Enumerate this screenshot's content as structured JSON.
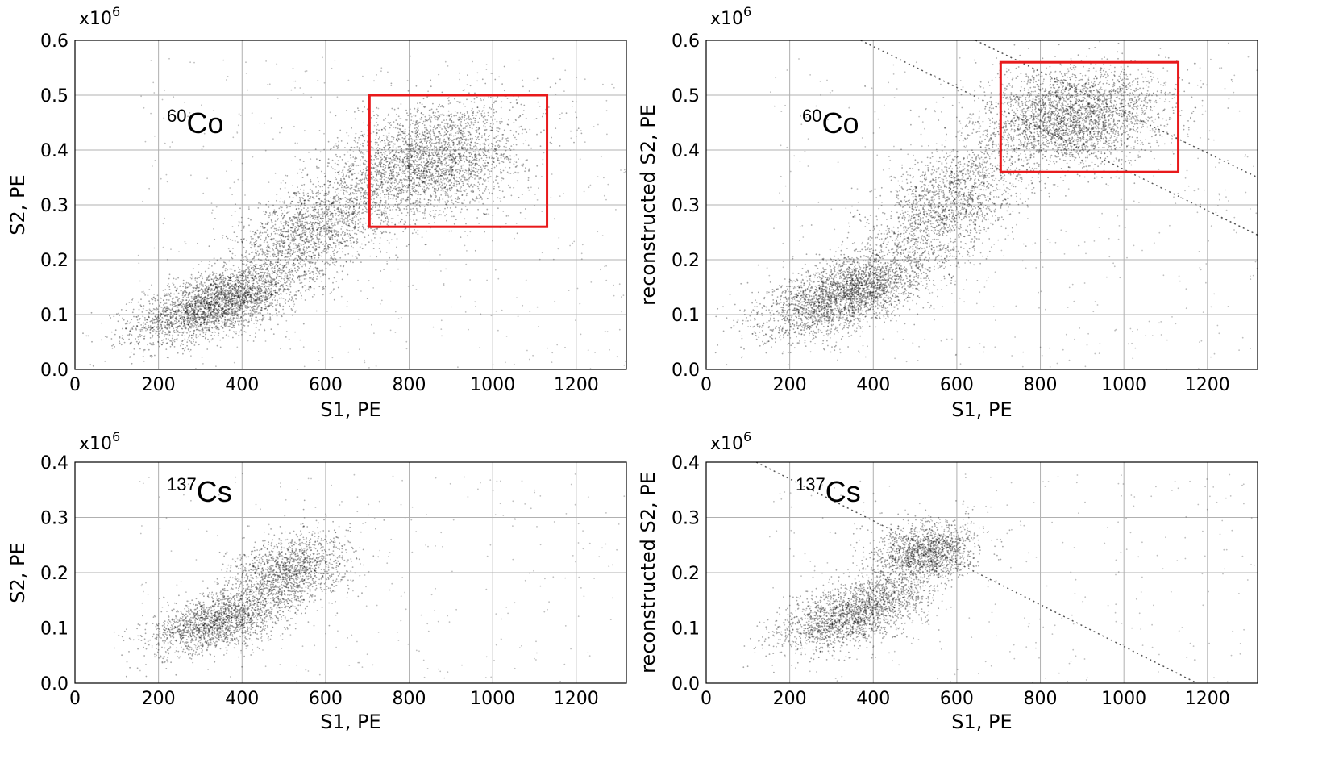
{
  "chart_data": [
    {
      "id": "co60_raw",
      "type": "scatter",
      "isotope_mass": "60",
      "isotope_symbol": "Co",
      "scale_base": "x10",
      "scale_exp": "6",
      "xlabel": "S1, PE",
      "ylabel": "S2, PE",
      "xlim": [
        0,
        1320
      ],
      "ylim": [
        0,
        0.6
      ],
      "xticks": [
        0,
        200,
        400,
        600,
        800,
        1000,
        1200
      ],
      "yticks": [
        "0.0",
        "0.1",
        "0.2",
        "0.3",
        "0.4",
        "0.5",
        "0.6"
      ],
      "grid": true,
      "selection_box": {
        "x": [
          705,
          1130
        ],
        "y": [
          0.26,
          0.5
        ],
        "color": "#e8191b"
      },
      "diagonal_lines": [],
      "clusters": [
        {
          "cx": 340,
          "cy": 0.12,
          "sx": 100,
          "sy": 0.035,
          "rho": 0.6,
          "n": 3000
        },
        {
          "cx": 560,
          "cy": 0.25,
          "sx": 90,
          "sy": 0.05,
          "rho": 0.5,
          "n": 1800
        },
        {
          "cx": 850,
          "cy": 0.38,
          "sx": 110,
          "sy": 0.055,
          "rho": 0.3,
          "n": 3000
        }
      ],
      "background_points": 500
    },
    {
      "id": "co60_reconstructed",
      "type": "scatter",
      "isotope_mass": "60",
      "isotope_symbol": "Co",
      "scale_base": "x10",
      "scale_exp": "6",
      "xlabel": "S1, PE",
      "ylabel": "reconstructed S2, PE",
      "xlim": [
        0,
        1320
      ],
      "ylim": [
        0,
        0.6
      ],
      "xticks": [
        0,
        200,
        400,
        600,
        800,
        1000,
        1200
      ],
      "yticks": [
        "0.0",
        "0.1",
        "0.2",
        "0.3",
        "0.4",
        "0.5",
        "0.6"
      ],
      "grid": true,
      "selection_box": {
        "x": [
          705,
          1130
        ],
        "y": [
          0.36,
          0.56
        ],
        "color": "#e8191b"
      },
      "diagonal_lines": [
        {
          "x1": 370,
          "y1": 0.6,
          "x2": 1320,
          "y2": 0.245
        },
        {
          "x1": 645,
          "y1": 0.6,
          "x2": 1320,
          "y2": 0.35
        }
      ],
      "clusters": [
        {
          "cx": 340,
          "cy": 0.14,
          "sx": 100,
          "sy": 0.04,
          "rho": 0.6,
          "n": 3000
        },
        {
          "cx": 580,
          "cy": 0.3,
          "sx": 90,
          "sy": 0.06,
          "rho": 0.5,
          "n": 1800
        },
        {
          "cx": 880,
          "cy": 0.46,
          "sx": 110,
          "sy": 0.045,
          "rho": 0.2,
          "n": 3000
        }
      ],
      "background_points": 500
    },
    {
      "id": "cs137_raw",
      "type": "scatter",
      "isotope_mass": "137",
      "isotope_symbol": "Cs",
      "scale_base": "x10",
      "scale_exp": "6",
      "xlabel": "S1, PE",
      "ylabel": "S2, PE",
      "xlim": [
        0,
        1320
      ],
      "ylim": [
        0,
        0.4
      ],
      "xticks": [
        0,
        200,
        400,
        600,
        800,
        1000,
        1200
      ],
      "yticks": [
        "0.0",
        "0.1",
        "0.2",
        "0.3",
        "0.4"
      ],
      "grid": true,
      "selection_box": null,
      "diagonal_lines": [],
      "clusters": [
        {
          "cx": 340,
          "cy": 0.11,
          "sx": 80,
          "sy": 0.03,
          "rho": 0.5,
          "n": 1800
        },
        {
          "cx": 510,
          "cy": 0.2,
          "sx": 70,
          "sy": 0.035,
          "rho": 0.3,
          "n": 1500
        }
      ],
      "background_points": 300
    },
    {
      "id": "cs137_reconstructed",
      "type": "scatter",
      "isotope_mass": "137",
      "isotope_symbol": "Cs",
      "scale_base": "x10",
      "scale_exp": "6",
      "xlabel": "S1, PE",
      "ylabel": "reconstructed S2, PE",
      "xlim": [
        0,
        1320
      ],
      "ylim": [
        0,
        0.4
      ],
      "xticks": [
        0,
        200,
        400,
        600,
        800,
        1000,
        1200
      ],
      "yticks": [
        "0.0",
        "0.1",
        "0.2",
        "0.3",
        "0.4"
      ],
      "grid": true,
      "selection_box": null,
      "diagonal_lines": [
        {
          "x1": 120,
          "y1": 0.4,
          "x2": 1175,
          "y2": 0.0
        }
      ],
      "clusters": [
        {
          "cx": 330,
          "cy": 0.12,
          "sx": 80,
          "sy": 0.03,
          "rho": 0.5,
          "n": 1600
        },
        {
          "cx": 450,
          "cy": 0.17,
          "sx": 60,
          "sy": 0.04,
          "rho": 0.4,
          "n": 700
        },
        {
          "cx": 530,
          "cy": 0.24,
          "sx": 60,
          "sy": 0.025,
          "rho": 0.1,
          "n": 1300
        }
      ],
      "background_points": 300
    }
  ]
}
